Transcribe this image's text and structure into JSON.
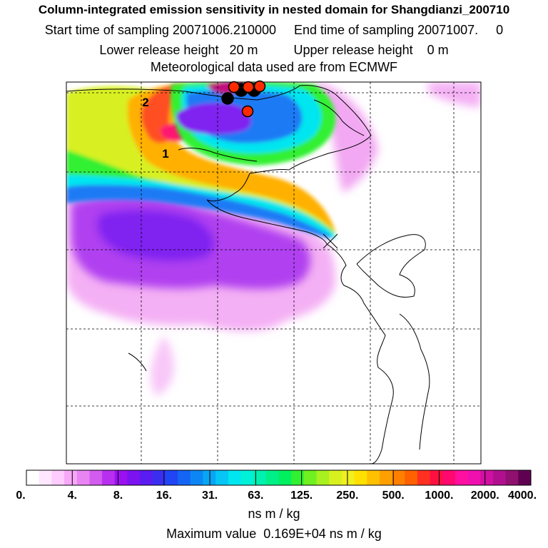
{
  "header": {
    "title": "Column-integrated emission sensitivity in nested domain for Shangdianzi_200710",
    "sampling_line": "Start time of sampling 20071006.210000     End time of sampling 20071007.     0",
    "release_line": "Lower release height   20 m          Upper release height    0 m",
    "met_line": "Meteorological data used are from ECMWF"
  },
  "chart_data": {
    "type": "heatmap",
    "title": "Column-integrated emission sensitivity in nested domain for Shangdianzi_200710",
    "units": "ns m / kg",
    "max_value_text": "Maximum value  0.169E+04 ns m / kg",
    "colorbar": {
      "tick_labels": [
        "0.",
        "4.",
        "8.",
        "16.",
        "31.",
        "63.",
        "125.",
        "250.",
        "500.",
        "1000.",
        "2000.",
        "4000."
      ],
      "tick_values": [
        0,
        4,
        8,
        16,
        31,
        63,
        125,
        250,
        500,
        1000,
        2000,
        4000
      ],
      "colors": [
        "#ffffff",
        "#ffe8ff",
        "#ffccff",
        "#f7a8f7",
        "#e985f3",
        "#d35cf0",
        "#b82ff0",
        "#9b10f0",
        "#7c12f0",
        "#5a1cf0",
        "#3a2ff0",
        "#1f45f5",
        "#1565f5",
        "#0d86f5",
        "#07a6f5",
        "#05c6f5",
        "#00e6f0",
        "#00f0d8",
        "#00f0b0",
        "#00f088",
        "#00f060",
        "#30f030",
        "#70f020",
        "#a8f020",
        "#d8f020",
        "#f0f020",
        "#ffe000",
        "#ffc000",
        "#ffa000",
        "#ff8000",
        "#ff6000",
        "#ff3020",
        "#ff1040",
        "#ff0870",
        "#ff10a0",
        "#f010b0",
        "#d010a0",
        "#b01090",
        "#901070",
        "#600050"
      ]
    },
    "cluster_labels": [
      "1",
      "2"
    ],
    "release_points": [
      {
        "label": "",
        "color": "#ff2a00"
      },
      {
        "label": "",
        "color": "#000000"
      }
    ],
    "gridlines": true
  }
}
